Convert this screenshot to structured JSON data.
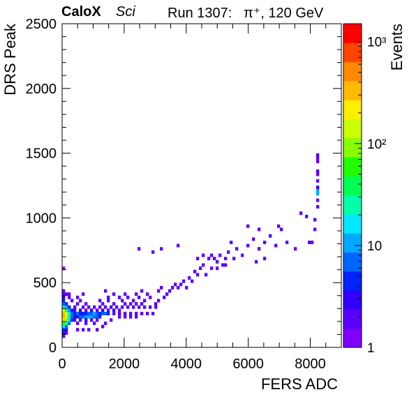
{
  "header": {
    "experiment": "CaloX",
    "tag": "Sci",
    "run": "Run 1307:",
    "beam": "π⁺, 120 GeV"
  },
  "chart_data": {
    "type": "heatmap",
    "xlabel": "FERS ADC",
    "ylabel": "DRS Peak",
    "xlim": [
      0,
      9000
    ],
    "ylim": [
      0,
      2500
    ],
    "x_ticks": [
      0,
      2000,
      4000,
      6000,
      8000
    ],
    "y_ticks": [
      0,
      500,
      1000,
      1500,
      2000,
      2500
    ],
    "bin_width_x": 90,
    "bin_width_y": 25,
    "colorbar": {
      "label": "Events",
      "scale": "log",
      "range": [
        1,
        1500
      ],
      "ticks": [
        {
          "value": 1,
          "label": "1"
        },
        {
          "value": 10,
          "label": "10"
        },
        {
          "value": 100,
          "label": "10²"
        },
        {
          "value": 1000,
          "label": "10³"
        }
      ]
    },
    "points": [
      [
        45,
        87,
        2
      ],
      [
        45,
        112,
        3
      ],
      [
        135,
        112,
        2
      ],
      [
        45,
        137,
        5
      ],
      [
        135,
        137,
        3
      ],
      [
        45,
        162,
        20
      ],
      [
        135,
        162,
        8
      ],
      [
        45,
        187,
        60
      ],
      [
        135,
        187,
        25
      ],
      [
        225,
        187,
        6
      ],
      [
        45,
        212,
        250
      ],
      [
        135,
        212,
        90
      ],
      [
        225,
        212,
        20
      ],
      [
        315,
        212,
        5
      ],
      [
        45,
        237,
        400
      ],
      [
        135,
        237,
        150
      ],
      [
        225,
        237,
        35
      ],
      [
        315,
        237,
        8
      ],
      [
        45,
        262,
        300
      ],
      [
        135,
        262,
        120
      ],
      [
        225,
        262,
        30
      ],
      [
        315,
        262,
        6
      ],
      [
        45,
        287,
        120
      ],
      [
        135,
        287,
        50
      ],
      [
        225,
        287,
        12
      ],
      [
        315,
        287,
        4
      ],
      [
        45,
        312,
        30
      ],
      [
        135,
        312,
        12
      ],
      [
        225,
        312,
        4
      ],
      [
        45,
        337,
        8
      ],
      [
        135,
        337,
        4
      ],
      [
        45,
        362,
        4
      ],
      [
        45,
        387,
        3
      ],
      [
        45,
        412,
        2
      ],
      [
        135,
        412,
        2
      ],
      [
        45,
        437,
        2
      ],
      [
        45,
        612,
        1
      ],
      [
        405,
        237,
        3
      ],
      [
        495,
        237,
        4
      ],
      [
        585,
        237,
        6
      ],
      [
        675,
        237,
        8
      ],
      [
        765,
        237,
        10
      ],
      [
        855,
        237,
        12
      ],
      [
        945,
        237,
        10
      ],
      [
        1035,
        237,
        8
      ],
      [
        1125,
        237,
        6
      ],
      [
        1215,
        237,
        4
      ],
      [
        405,
        262,
        4
      ],
      [
        495,
        262,
        6
      ],
      [
        585,
        262,
        5
      ],
      [
        675,
        262,
        4
      ],
      [
        765,
        262,
        5
      ],
      [
        855,
        262,
        7
      ],
      [
        945,
        262,
        8
      ],
      [
        1035,
        262,
        9
      ],
      [
        1125,
        262,
        8
      ],
      [
        1215,
        262,
        5
      ],
      [
        1305,
        262,
        6
      ],
      [
        1395,
        262,
        7
      ],
      [
        1485,
        262,
        4
      ],
      [
        405,
        212,
        2
      ],
      [
        585,
        212,
        2
      ],
      [
        765,
        212,
        3
      ],
      [
        945,
        212,
        2
      ],
      [
        1125,
        212,
        2
      ],
      [
        405,
        287,
        2
      ],
      [
        585,
        287,
        3
      ],
      [
        765,
        287,
        2
      ],
      [
        945,
        287,
        3
      ],
      [
        1125,
        287,
        2
      ],
      [
        1305,
        287,
        3
      ],
      [
        1485,
        287,
        2
      ],
      [
        1665,
        287,
        3
      ],
      [
        1845,
        287,
        2
      ],
      [
        405,
        312,
        2
      ],
      [
        675,
        312,
        2
      ],
      [
        855,
        312,
        2
      ],
      [
        1035,
        312,
        2
      ],
      [
        1215,
        312,
        2
      ],
      [
        1395,
        312,
        2
      ],
      [
        1575,
        312,
        3
      ],
      [
        1755,
        312,
        2
      ],
      [
        1935,
        312,
        2
      ],
      [
        2115,
        312,
        2
      ],
      [
        2295,
        312,
        2
      ],
      [
        2475,
        312,
        2
      ],
      [
        2655,
        312,
        2
      ],
      [
        495,
        337,
        2
      ],
      [
        765,
        337,
        2
      ],
      [
        1305,
        337,
        2
      ],
      [
        1665,
        337,
        2
      ],
      [
        2025,
        337,
        2
      ],
      [
        2205,
        337,
        2
      ],
      [
        2385,
        337,
        2
      ],
      [
        2565,
        337,
        2
      ],
      [
        315,
        362,
        2
      ],
      [
        585,
        362,
        2
      ],
      [
        1215,
        362,
        2
      ],
      [
        1485,
        362,
        2
      ],
      [
        1935,
        362,
        2
      ],
      [
        2295,
        362,
        2
      ],
      [
        2655,
        362,
        2
      ],
      [
        225,
        387,
        2
      ],
      [
        495,
        387,
        2
      ],
      [
        1485,
        387,
        2
      ],
      [
        1845,
        387,
        2
      ],
      [
        2115,
        387,
        2
      ],
      [
        2475,
        387,
        2
      ],
      [
        2835,
        387,
        2
      ],
      [
        225,
        412,
        2
      ],
      [
        675,
        412,
        2
      ],
      [
        1665,
        412,
        2
      ],
      [
        2025,
        412,
        2
      ],
      [
        2385,
        412,
        2
      ],
      [
        2745,
        412,
        2
      ],
      [
        1395,
        437,
        2
      ],
      [
        2565,
        437,
        2
      ],
      [
        495,
        137,
        2
      ],
      [
        675,
        137,
        2
      ],
      [
        855,
        137,
        2
      ],
      [
        1125,
        137,
        2
      ],
      [
        1305,
        162,
        2
      ],
      [
        495,
        187,
        2
      ],
      [
        765,
        187,
        2
      ],
      [
        1035,
        187,
        2
      ],
      [
        1395,
        187,
        2
      ],
      [
        1575,
        212,
        2
      ],
      [
        1845,
        237,
        2
      ],
      [
        2025,
        237,
        2
      ],
      [
        2205,
        237,
        2
      ],
      [
        2385,
        237,
        2
      ],
      [
        1665,
        262,
        2
      ],
      [
        1845,
        262,
        2
      ],
      [
        2025,
        262,
        2
      ],
      [
        2205,
        262,
        2
      ],
      [
        2385,
        262,
        2
      ],
      [
        2565,
        262,
        2
      ],
      [
        2745,
        262,
        2
      ],
      [
        2925,
        262,
        2
      ],
      [
        2835,
        312,
        2
      ],
      [
        3015,
        312,
        2
      ],
      [
        3015,
        337,
        2
      ],
      [
        3105,
        362,
        2
      ],
      [
        3285,
        387,
        2
      ],
      [
        3375,
        412,
        2
      ],
      [
        3465,
        437,
        2
      ],
      [
        3105,
        437,
        2
      ],
      [
        3195,
        462,
        2
      ],
      [
        3555,
        462,
        2
      ],
      [
        3645,
        487,
        2
      ],
      [
        3735,
        462,
        2
      ],
      [
        3825,
        487,
        2
      ],
      [
        3915,
        512,
        2
      ],
      [
        4005,
        462,
        2
      ],
      [
        4095,
        537,
        2
      ],
      [
        4185,
        512,
        2
      ],
      [
        4275,
        587,
        2
      ],
      [
        4365,
        562,
        2
      ],
      [
        4455,
        612,
        2
      ],
      [
        4545,
        637,
        2
      ],
      [
        4635,
        562,
        2
      ],
      [
        4725,
        687,
        2
      ],
      [
        4815,
        612,
        2
      ],
      [
        4905,
        687,
        2
      ],
      [
        4995,
        662,
        2
      ],
      [
        5085,
        712,
        2
      ],
      [
        5175,
        637,
        2
      ],
      [
        5265,
        687,
        2
      ],
      [
        5355,
        737,
        2
      ],
      [
        5445,
        812,
        2
      ],
      [
        5625,
        762,
        2
      ],
      [
        5805,
        712,
        2
      ],
      [
        5985,
        787,
        2
      ],
      [
        6165,
        837,
        2
      ],
      [
        6345,
        762,
        2
      ],
      [
        6525,
        812,
        2
      ],
      [
        6705,
        862,
        2
      ],
      [
        6885,
        787,
        2
      ],
      [
        7065,
        912,
        2
      ],
      [
        7245,
        812,
        2
      ],
      [
        7515,
        762,
        2
      ],
      [
        7695,
        1037,
        2
      ],
      [
        7875,
        1012,
        2
      ],
      [
        7965,
        812,
        2
      ],
      [
        8055,
        812,
        2
      ],
      [
        8145,
        912,
        2
      ],
      [
        8145,
        987,
        2
      ],
      [
        3195,
        762,
        2
      ],
      [
        3735,
        787,
        2
      ],
      [
        2475,
        762,
        2
      ],
      [
        2925,
        737,
        2
      ],
      [
        4365,
        687,
        2
      ],
      [
        4545,
        712,
        2
      ],
      [
        4815,
        712,
        2
      ],
      [
        4995,
        612,
        2
      ],
      [
        5265,
        637,
        2
      ],
      [
        5535,
        687,
        2
      ],
      [
        6255,
        662,
        2
      ],
      [
        6525,
        687,
        2
      ],
      [
        6345,
        912,
        2
      ],
      [
        5985,
        937,
        2
      ],
      [
        6975,
        937,
        2
      ],
      [
        8235,
        1137,
        2
      ],
      [
        8235,
        1187,
        10
      ],
      [
        8235,
        1212,
        12
      ],
      [
        8235,
        1237,
        3
      ],
      [
        8235,
        1287,
        2
      ],
      [
        8235,
        1337,
        2
      ],
      [
        8235,
        1362,
        2
      ],
      [
        8235,
        1437,
        2
      ],
      [
        8235,
        1462,
        2
      ],
      [
        8235,
        1487,
        2
      ],
      [
        8235,
        1087,
        2
      ]
    ]
  }
}
